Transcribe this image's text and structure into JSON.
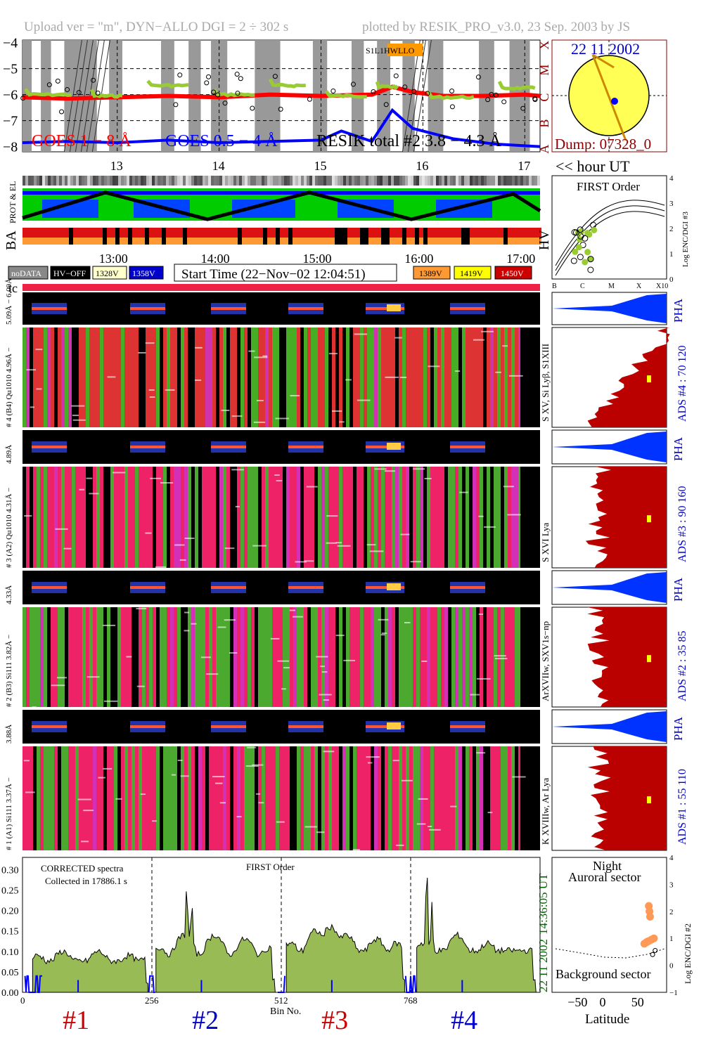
{
  "header": {
    "upload": "Upload ver = \"m\", DYN−ALLO DGI =   2 ÷ 302 s",
    "plotted": "plotted by RESIK_PRO_v3.0, 23 Sep. 2003 by JS"
  },
  "goes": {
    "type": "line",
    "yticks": [
      "−4",
      "−5",
      "−6",
      "−7",
      "−8"
    ],
    "ylim": [
      -8.2,
      -3.9
    ],
    "class_labels": [
      "X",
      "M",
      "C",
      "B",
      "A"
    ],
    "hour_ticks": [
      "13",
      "14",
      "15",
      "16",
      "17"
    ],
    "legend_goes18": "GOES 1 − 8 Å",
    "legend_goes054": "GOES 0.5 − 4 Å",
    "legend_resik": "RESIK total #2  3.8 − 4.3 Å",
    "flag_text": "S1L1HWLLO",
    "hour_label": "<< hour UT",
    "series": [
      {
        "name": "GOES 1 − 8 Å",
        "color": "#ff0000",
        "x": [
          12.07,
          12.5,
          13.0,
          13.5,
          14.0,
          14.5,
          15.0,
          15.5,
          15.7,
          15.9,
          16.2,
          16.6,
          17.0,
          17.15
        ],
        "values": [
          -6.1,
          -6.15,
          -6.1,
          -6.05,
          -6.1,
          -6.0,
          -6.05,
          -6.0,
          -5.7,
          -5.9,
          -6.05,
          -6.05,
          -6.0,
          -6.05
        ]
      },
      {
        "name": "GOES 0.5 − 4 Å",
        "color": "#0000ff",
        "x": [
          12.07,
          12.5,
          13.0,
          13.5,
          14.0,
          14.5,
          15.0,
          15.2,
          15.5,
          15.7,
          15.9,
          16.3,
          16.7,
          17.15
        ],
        "values": [
          -7.85,
          -7.8,
          -7.85,
          -7.75,
          -7.85,
          -7.8,
          -7.75,
          -7.4,
          -7.8,
          -6.6,
          -7.3,
          -7.7,
          -7.9,
          -8.0
        ]
      }
    ]
  },
  "sun": {
    "date": "22 11 2002",
    "dump": "Dump: 07328_0"
  },
  "ephem": {
    "labels": [
      "PROT & EL",
      "BA"
    ],
    "time_ticks": [
      "13:00",
      "14:00",
      "15:00",
      "16:00",
      "17:00"
    ]
  },
  "first_order": {
    "type": "scatter",
    "title": "FIRST Order",
    "hv_label": "HV",
    "yticks": [
      "0",
      "1",
      "2",
      "3",
      "4"
    ],
    "xticks": [
      "B",
      "C",
      "M",
      "X",
      "X10"
    ],
    "ylabel": "Log ENC/DGI #3"
  },
  "legend": {
    "items": [
      {
        "label": "noDATA",
        "bg": "#888888",
        "fg": "#ffffff"
      },
      {
        "label": "HV−OFF",
        "bg": "#000000",
        "fg": "#ffffff"
      },
      {
        "label": "1328V",
        "bg": "#ffffcc",
        "fg": "#000000"
      },
      {
        "label": "1358V",
        "bg": "#0000cc",
        "fg": "#ffffff"
      }
    ],
    "items_right": [
      {
        "label": "1389V",
        "bg": "#ff9933",
        "fg": "#000000"
      },
      {
        "label": "1419V",
        "bg": "#ffff00",
        "fg": "#000000"
      },
      {
        "label": "1450V",
        "bg": "#cc0000",
        "fg": "#ffffff"
      }
    ],
    "start_time": "Start Time (22−Nov−02 12:04:51)",
    "tc": "tc"
  },
  "channels": [
    {
      "pha_label": "5.09Å − 6.09Å",
      "spec_label": "# 4 (B4) Qu1010 4.96Å −",
      "line_label": "S XV, Si Lyβ, S1XIII",
      "ads": "ADS #4 :   70 120"
    },
    {
      "pha_label": "4.89Å",
      "spec_label": "# 3 (A2) Qu1010 4.31Å −",
      "line_label": "S XVI Lya",
      "ads": "ADS #3 :   90 160"
    },
    {
      "pha_label": "4.33Å",
      "spec_label": "# 2 (B3) Si111 3.82Å −",
      "line_label": "ArXVIIw, SXV1s−np",
      "ads": "ADS #2 :   35 85"
    },
    {
      "pha_label": "3.88Å",
      "spec_label": "# 1 (A1) Si111 3.37Å −",
      "line_label": "K XVIIIw, Ar Lya",
      "ads": "ADS #1 :   55 110"
    }
  ],
  "pha_text": "PHA",
  "spectrum": {
    "type": "area",
    "title": "CORRECTED spectra",
    "collected": "Collected in 17886.1 s",
    "order": "FIRST Order",
    "yticks": [
      "0.30",
      "0.25",
      "0.20",
      "0.15",
      "0.10",
      "0.05",
      "0.00"
    ],
    "ylim": [
      0,
      0.33
    ],
    "xticks": [
      "0",
      "256",
      "512",
      "768"
    ],
    "xlabel": "Bin No.",
    "channel_labels": [
      {
        "label": "#1",
        "color": "#cc0000"
      },
      {
        "label": "#2",
        "color": "#0000cc"
      },
      {
        "label": "#3",
        "color": "#cc0000"
      },
      {
        "label": "#4",
        "color": "#0000cc"
      }
    ],
    "time_label": "14:36:05 UT",
    "date_label": "22 11 2002"
  },
  "latitude": {
    "type": "scatter",
    "night": "Night",
    "auroral": "Auroral sector",
    "background": "Background sector",
    "xticks": [
      "−50",
      "0",
      "50"
    ],
    "xlabel": "Latitude",
    "yticks": [
      "4",
      "3",
      "2",
      "1",
      "0",
      "−1"
    ],
    "ylabel": "Log ENC/DGI #2",
    "points": [
      [
        62,
        2.2
      ],
      [
        63,
        2.0
      ],
      [
        64,
        1.8
      ],
      [
        58,
        0.85
      ],
      [
        62,
        0.9
      ],
      [
        66,
        0.95
      ],
      [
        70,
        1.0
      ],
      [
        55,
        0.8
      ],
      [
        60,
        0.88
      ],
      [
        68,
        0.4
      ],
      [
        72,
        0.55
      ]
    ]
  }
}
